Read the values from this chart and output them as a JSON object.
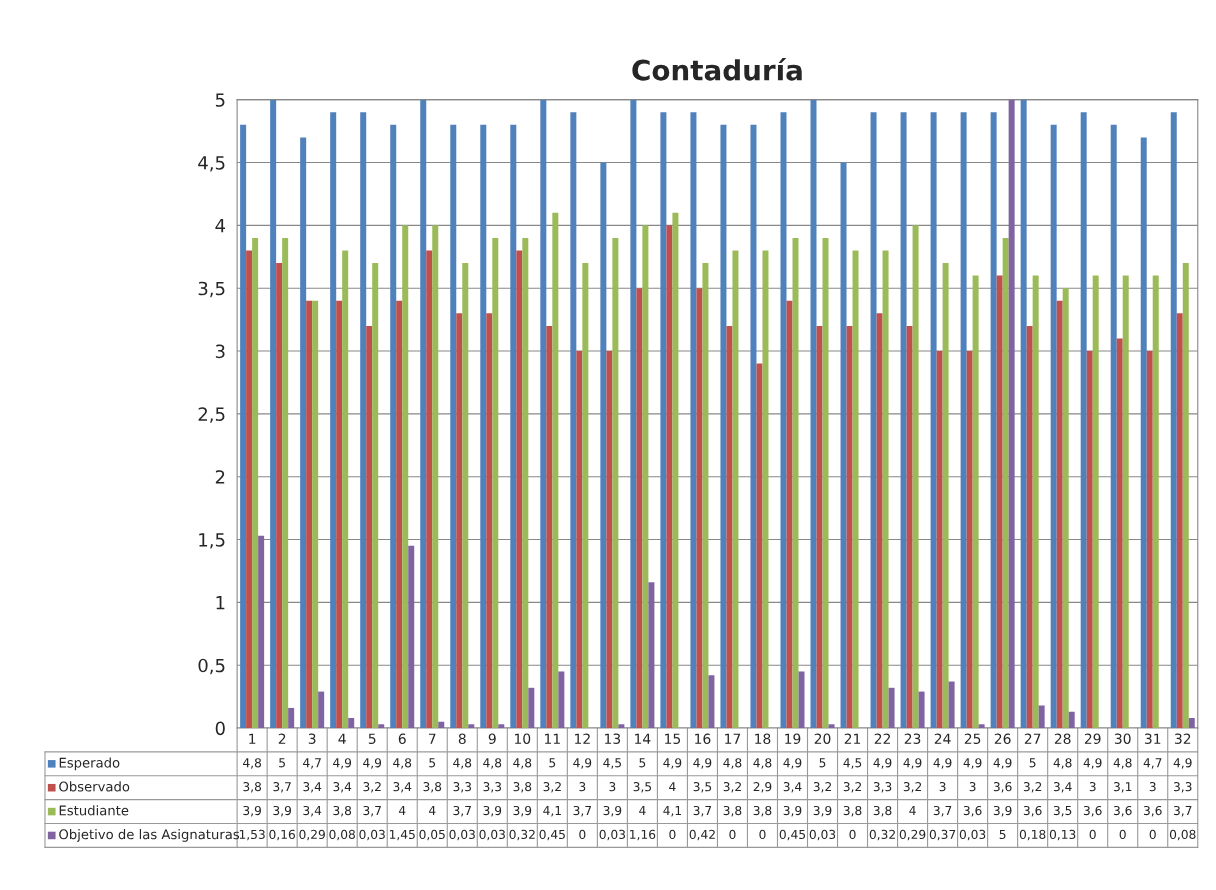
{
  "chart_data": {
    "type": "bar",
    "title": "Contaduría",
    "categories": [
      "1",
      "2",
      "3",
      "4",
      "5",
      "6",
      "7",
      "8",
      "9",
      "10",
      "11",
      "12",
      "13",
      "14",
      "15",
      "16",
      "17",
      "18",
      "19",
      "20",
      "21",
      "22",
      "23",
      "24",
      "25",
      "26",
      "27",
      "28",
      "29",
      "30",
      "31",
      "32"
    ],
    "series": [
      {
        "name": "Esperado",
        "color": "#4f81bd",
        "values": [
          4.8,
          5,
          4.7,
          4.9,
          4.9,
          4.8,
          5,
          4.8,
          4.8,
          4.8,
          5,
          4.9,
          4.5,
          5,
          4.9,
          4.9,
          4.8,
          4.8,
          4.9,
          5,
          4.5,
          4.9,
          4.9,
          4.9,
          4.9,
          4.9,
          5,
          4.8,
          4.9,
          4.8,
          4.7,
          4.9
        ],
        "value_labels": [
          "4,8",
          "5",
          "4,7",
          "4,9",
          "4,9",
          "4,8",
          "5",
          "4,8",
          "4,8",
          "4,8",
          "5",
          "4,9",
          "4,5",
          "5",
          "4,9",
          "4,9",
          "4,8",
          "4,8",
          "4,9",
          "5",
          "4,5",
          "4,9",
          "4,9",
          "4,9",
          "4,9",
          "4,9",
          "5",
          "4,8",
          "4,9",
          "4,8",
          "4,7",
          "4,9"
        ]
      },
      {
        "name": "Observado",
        "color": "#c0504d",
        "values": [
          3.8,
          3.7,
          3.4,
          3.4,
          3.2,
          3.4,
          3.8,
          3.3,
          3.3,
          3.8,
          3.2,
          3,
          3,
          3.5,
          4,
          3.5,
          3.2,
          2.9,
          3.4,
          3.2,
          3.2,
          3.3,
          3.2,
          3,
          3,
          3.6,
          3.2,
          3.4,
          3,
          3.1,
          3,
          3.3
        ],
        "value_labels": [
          "3,8",
          "3,7",
          "3,4",
          "3,4",
          "3,2",
          "3,4",
          "3,8",
          "3,3",
          "3,3",
          "3,8",
          "3,2",
          "3",
          "3",
          "3,5",
          "4",
          "3,5",
          "3,2",
          "2,9",
          "3,4",
          "3,2",
          "3,2",
          "3,3",
          "3,2",
          "3",
          "3",
          "3,6",
          "3,2",
          "3,4",
          "3",
          "3,1",
          "3",
          "3,3"
        ]
      },
      {
        "name": "Estudiante",
        "color": "#9bbb59",
        "values": [
          3.9,
          3.9,
          3.4,
          3.8,
          3.7,
          4,
          4,
          3.7,
          3.9,
          3.9,
          4.1,
          3.7,
          3.9,
          4,
          4.1,
          3.7,
          3.8,
          3.8,
          3.9,
          3.9,
          3.8,
          3.8,
          4,
          3.7,
          3.6,
          3.9,
          3.6,
          3.5,
          3.6,
          3.6,
          3.6,
          3.7
        ],
        "value_labels": [
          "3,9",
          "3,9",
          "3,4",
          "3,8",
          "3,7",
          "4",
          "4",
          "3,7",
          "3,9",
          "3,9",
          "4,1",
          "3,7",
          "3,9",
          "4",
          "4,1",
          "3,7",
          "3,8",
          "3,8",
          "3,9",
          "3,9",
          "3,8",
          "3,8",
          "4",
          "3,7",
          "3,6",
          "3,9",
          "3,6",
          "3,5",
          "3,6",
          "3,6",
          "3,6",
          "3,7"
        ]
      },
      {
        "name": "Objetivo de las Asignaturas",
        "color": "#8064a2",
        "values": [
          1.53,
          0.16,
          0.29,
          0.08,
          0.03,
          1.45,
          0.05,
          0.03,
          0.03,
          0.32,
          0.45,
          0,
          0.03,
          1.16,
          0,
          0.42,
          0,
          0,
          0.45,
          0.03,
          0,
          0.32,
          0.29,
          0.37,
          0.03,
          5,
          0.18,
          0.13,
          0,
          0,
          0,
          0.08
        ],
        "value_labels": [
          "1,53",
          "0,16",
          "0,29",
          "0,08",
          "0,03",
          "1,45",
          "0,05",
          "0,03",
          "0,03",
          "0,32",
          "0,45",
          "0",
          "0,03",
          "1,16",
          "0",
          "0,42",
          "0",
          "0",
          "0,45",
          "0,03",
          "0",
          "0,32",
          "0,29",
          "0,37",
          "0,03",
          "5",
          "0,18",
          "0,13",
          "0",
          "0",
          "0",
          "0,08"
        ]
      }
    ],
    "ylim": [
      0,
      5
    ],
    "yticks": [
      0,
      {
        "value": 0.5,
        "label": "0,5"
      },
      1,
      {
        "value": 1.5,
        "label": "1,5"
      },
      2,
      {
        "value": 2.5,
        "label": "2,5"
      },
      3,
      {
        "value": 3.5,
        "label": "3,5"
      },
      4,
      {
        "value": 4.5,
        "label": "4,5"
      },
      5
    ],
    "grid": "y",
    "legend": "bottom"
  }
}
